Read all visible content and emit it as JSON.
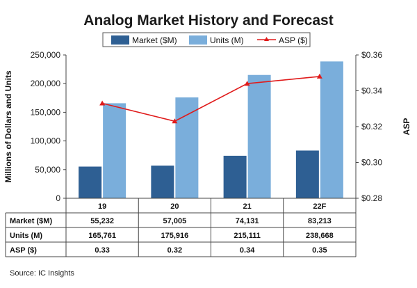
{
  "chart_data": {
    "type": "bar",
    "title": "Analog Market History and Forecast",
    "categories": [
      "19",
      "20",
      "21",
      "22F"
    ],
    "series": [
      {
        "name": "Market ($M)",
        "type": "bar",
        "axis": "left",
        "color": "#2e5f93",
        "values": [
          55232,
          57005,
          74131,
          83213
        ],
        "display": [
          "55,232",
          "57,005",
          "74,131",
          "83,213"
        ]
      },
      {
        "name": "Units (M)",
        "type": "bar",
        "axis": "left",
        "color": "#7aaedb",
        "values": [
          165761,
          175916,
          215111,
          238668
        ],
        "display": [
          "165,761",
          "175,916",
          "215,111",
          "238,668"
        ]
      },
      {
        "name": "ASP ($)",
        "type": "line",
        "axis": "right",
        "color": "#e01b1b",
        "values": [
          0.333,
          0.323,
          0.344,
          0.348
        ],
        "display": [
          "0.33",
          "0.32",
          "0.34",
          "0.35"
        ]
      }
    ],
    "ylabel": "Millions of Dollars and Units",
    "ylim": [
      0,
      250000
    ],
    "yticks": [
      "0",
      "50,000",
      "100,000",
      "150,000",
      "200,000",
      "250,000"
    ],
    "y2label": "ASP",
    "y2lim": [
      0.28,
      0.36
    ],
    "y2ticks": [
      "$0.28",
      "$0.30",
      "$0.32",
      "$0.34",
      "$0.36"
    ],
    "legend_position": "top",
    "grid": false,
    "table_rows": [
      "Market ($M)",
      "Units (M)",
      "ASP ($)"
    ],
    "source": "Source:  IC Insights"
  }
}
